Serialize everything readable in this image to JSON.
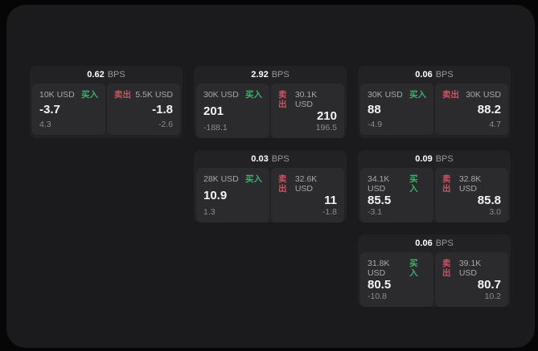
{
  "labels": {
    "bps_unit": "BPS",
    "buy": "买入",
    "sell": "卖出"
  },
  "colors": {
    "buy": "#3eaf6f",
    "sell": "#d25064",
    "frame_bg": "#1b1b1d",
    "card_bg": "#222224",
    "pane_bg": "#2b2b2d"
  },
  "cards": [
    {
      "bps": "0.62",
      "buy": {
        "amount": "10K USD",
        "value": "-3.7",
        "delta": "4.3"
      },
      "sell": {
        "amount": "5.5K USD",
        "value": "-1.8",
        "delta": "-2.6"
      }
    },
    {
      "bps": "2.92",
      "buy": {
        "amount": "30K USD",
        "value": "201",
        "delta": "-188.1"
      },
      "sell": {
        "amount": "30.1K USD",
        "value": "210",
        "delta": "196.5"
      }
    },
    {
      "bps": "0.06",
      "buy": {
        "amount": "30K USD",
        "value": "88",
        "delta": "-4.9"
      },
      "sell": {
        "amount": "30K USD",
        "value": "88.2",
        "delta": "4.7"
      }
    },
    {
      "bps": "0.03",
      "buy": {
        "amount": "28K USD",
        "value": "10.9",
        "delta": "1.3"
      },
      "sell": {
        "amount": "32.6K USD",
        "value": "11",
        "delta": "-1.8"
      }
    },
    {
      "bps": "0.09",
      "buy": {
        "amount": "34.1K USD",
        "value": "85.5",
        "delta": "-3.1"
      },
      "sell": {
        "amount": "32.8K USD",
        "value": "85.8",
        "delta": "3.0"
      }
    },
    {
      "bps": "0.06",
      "buy": {
        "amount": "31.8K USD",
        "value": "80.5",
        "delta": "-10.8"
      },
      "sell": {
        "amount": "39.1K USD",
        "value": "80.7",
        "delta": "10.2"
      }
    }
  ]
}
